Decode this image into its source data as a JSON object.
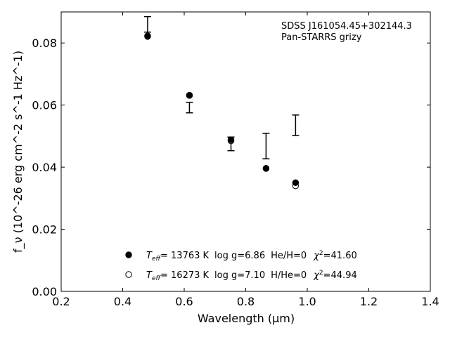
{
  "chart_data": {
    "type": "scatter",
    "title": "",
    "xlabel": "Wavelength (μm)",
    "ylabel": "f_ν (10^-26 erg cm^-2 s^-1 Hz^-1)",
    "xlim": [
      0.2,
      1.4
    ],
    "ylim": [
      0.0,
      0.09
    ],
    "xticks": [
      0.2,
      0.4,
      0.6,
      0.8,
      1.0,
      1.2,
      1.4
    ],
    "xtick_labels": [
      "0.2",
      "0.4",
      "0.6",
      "0.8",
      "1.0",
      "1.2",
      "1.4"
    ],
    "yticks": [
      0.0,
      0.02,
      0.04,
      0.06,
      0.08
    ],
    "ytick_labels": [
      "0.00",
      "0.02",
      "0.04",
      "0.06",
      "0.08"
    ],
    "grid": false,
    "annotation": [
      "SDSS J161054.45+302144.3",
      "Pan-STARRS grizy"
    ],
    "observed": {
      "x": [
        0.481,
        0.617,
        0.752,
        0.866,
        0.962
      ],
      "y": [
        0.086,
        0.0592,
        0.0475,
        0.0468,
        0.0535
      ],
      "yerr": [
        0.0025,
        0.0017,
        0.0022,
        0.0041,
        0.0033
      ]
    },
    "series": [
      {
        "marker": "filled-circle",
        "x": [
          0.481,
          0.617,
          0.752,
          0.866,
          0.962
        ],
        "y": [
          0.0821,
          0.0632,
          0.0488,
          0.0396,
          0.035
        ]
      },
      {
        "marker": "open-circle",
        "x": [
          0.481,
          0.617,
          0.752,
          0.866,
          0.962
        ],
        "y": [
          0.0823,
          0.0631,
          0.0485,
          0.0396,
          0.034
        ]
      }
    ],
    "legend": {
      "placement": "lower-center",
      "entries": [
        {
          "marker": "filled-circle",
          "teff": "= 13763 K",
          "logg": "log g=6.86",
          "comp": "He/H=0",
          "chi2": "=41.60"
        },
        {
          "marker": "open-circle",
          "teff": "= 16273 K",
          "logg": "log g=7.10",
          "comp": "H/He=0",
          "chi2": "=44.94"
        }
      ]
    }
  }
}
